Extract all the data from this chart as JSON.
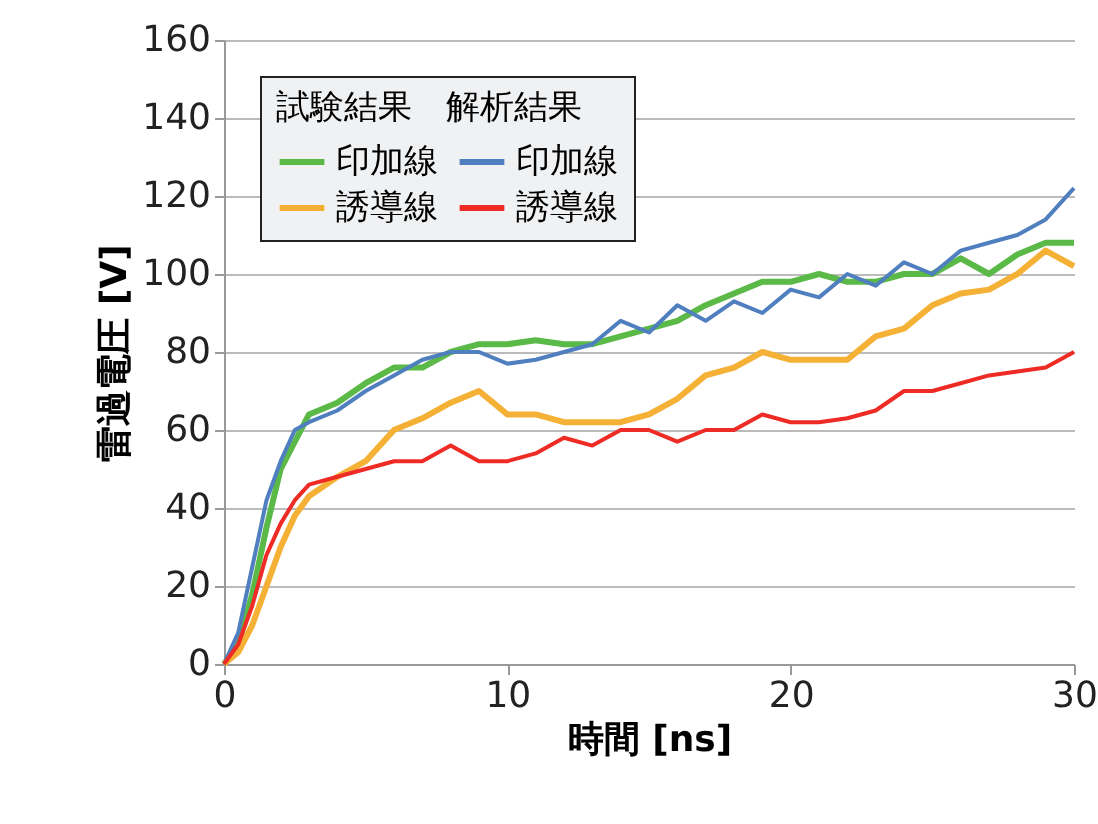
{
  "chart_data": {
    "type": "line",
    "xlabel": "時間 [ns]",
    "ylabel": "雷過電圧 [V]",
    "legend_title": "試験結果　解析結果",
    "x": [
      0,
      0.5,
      1,
      1.5,
      2,
      2.5,
      3,
      4,
      5,
      6,
      7,
      8,
      9,
      10,
      11,
      12,
      13,
      14,
      15,
      16,
      17,
      18,
      19,
      20,
      21,
      22,
      23,
      24,
      25,
      26,
      27,
      28,
      29,
      30
    ],
    "series": [
      {
        "name": "印加線",
        "color": "#5ab947",
        "values": [
          0,
          5,
          18,
          35,
          50,
          57,
          64,
          67,
          72,
          76,
          76,
          80,
          82,
          82,
          83,
          82,
          82,
          84,
          86,
          88,
          92,
          95,
          98,
          98,
          100,
          98,
          98,
          100,
          100,
          104,
          100,
          105,
          108,
          108
        ]
      },
      {
        "name": "印加線",
        "color": "#4f7fbf",
        "values": [
          0,
          8,
          25,
          42,
          52,
          60,
          62,
          65,
          70,
          74,
          78,
          80,
          80,
          77,
          78,
          80,
          82,
          88,
          85,
          92,
          88,
          93,
          90,
          96,
          94,
          100,
          97,
          103,
          100,
          106,
          108,
          110,
          114,
          122
        ]
      },
      {
        "name": "誘導線",
        "color": "#f5b135",
        "values": [
          0,
          3,
          10,
          20,
          30,
          38,
          43,
          48,
          52,
          60,
          63,
          67,
          70,
          64,
          64,
          62,
          62,
          62,
          64,
          68,
          74,
          76,
          80,
          78,
          78,
          78,
          84,
          86,
          92,
          95,
          96,
          100,
          106,
          102
        ]
      },
      {
        "name": "誘導線",
        "color": "#ee2b24",
        "values": [
          0,
          5,
          15,
          28,
          36,
          42,
          46,
          48,
          50,
          52,
          52,
          56,
          52,
          52,
          54,
          58,
          56,
          60,
          60,
          57,
          60,
          60,
          64,
          62,
          62,
          63,
          65,
          70,
          70,
          72,
          74,
          75,
          76,
          80
        ]
      }
    ],
    "xlim": [
      0,
      30
    ],
    "xticks": [
      0,
      10,
      20,
      30
    ],
    "ylim": [
      0,
      160
    ],
    "yticks": [
      0,
      20,
      40,
      60,
      80,
      100,
      120,
      140,
      160
    ],
    "grid": "y",
    "legend": "top left",
    "marker": "none",
    "line_style": "solid"
  }
}
